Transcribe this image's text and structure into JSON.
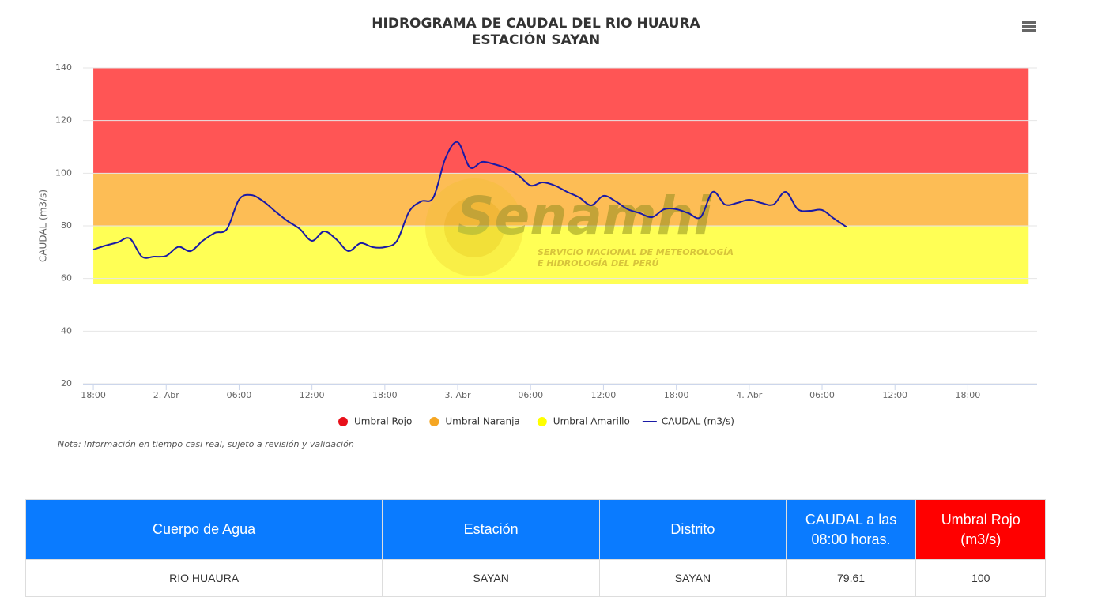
{
  "chart_data": {
    "type": "line",
    "title": "HIDROGRAMA DE CAUDAL DEL RIO HUAURA",
    "subtitle": "ESTACIÓN SAYAN",
    "y_label": "CAUDAL (m3/s)",
    "xlim": [
      -0.85,
      77.7
    ],
    "xticks": [
      {
        "value": 0,
        "label": "18:00"
      },
      {
        "value": 6,
        "label": "2. Abr"
      },
      {
        "value": 12,
        "label": "06:00"
      },
      {
        "value": 18,
        "label": "12:00"
      },
      {
        "value": 24,
        "label": "18:00"
      },
      {
        "value": 30,
        "label": "3. Abr"
      },
      {
        "value": 36,
        "label": "06:00"
      },
      {
        "value": 42,
        "label": "12:00"
      },
      {
        "value": 48,
        "label": "18:00"
      },
      {
        "value": 54,
        "label": "4. Abr"
      },
      {
        "value": 60,
        "label": "06:00"
      },
      {
        "value": 66,
        "label": "12:00"
      },
      {
        "value": 72,
        "label": "18:00"
      }
    ],
    "ylim": [
      20,
      140
    ],
    "yticks": [
      20,
      40,
      60,
      80,
      100,
      120,
      140
    ],
    "grid": true,
    "x": [
      0,
      1,
      2,
      3,
      4,
      5,
      6,
      7,
      8,
      9,
      10,
      11,
      12,
      13,
      14,
      15,
      16,
      17,
      18,
      19,
      20,
      21,
      22,
      23,
      24,
      25,
      26,
      27,
      28,
      29,
      30,
      31,
      32,
      33,
      34,
      35,
      36,
      37,
      38,
      39,
      40,
      41,
      42,
      43,
      44,
      45,
      46,
      47,
      48,
      49,
      50,
      51,
      52,
      53,
      54,
      55,
      56,
      57,
      58,
      59,
      60,
      61,
      62
    ],
    "series": [
      {
        "name": "CAUDAL (m3/s)",
        "color": "#1a1aa6",
        "values": [
          71,
          72.5,
          73.7,
          75.2,
          68.3,
          68.3,
          68.6,
          72,
          70.4,
          74.3,
          77.3,
          78.8,
          90,
          91.7,
          89.3,
          85.4,
          81.8,
          78.8,
          74.3,
          77.9,
          74.9,
          70.4,
          73.4,
          71.9,
          71.9,
          74.3,
          85.4,
          89.3,
          90.8,
          105.8,
          111.8,
          102.2,
          104.3,
          103.4,
          101.9,
          99.2,
          95.3,
          96.5,
          95.3,
          92.9,
          90.8,
          87.8,
          91.4,
          89.3,
          86.3,
          84.8,
          83.3,
          86.3,
          86.3,
          84.8,
          83.3,
          92.9,
          88.1,
          88.7,
          89.9,
          88.7,
          88.1,
          92.9,
          86.3,
          85.7,
          86,
          82.7,
          79.61
        ]
      }
    ],
    "bands": [
      {
        "name": "Umbral Rojo",
        "color": "#e8101a",
        "fill": "#ff5555",
        "xlim": [
          0,
          77
        ],
        "ylim": [
          100,
          140
        ]
      },
      {
        "name": "Umbral Naranja",
        "color": "#f5a623",
        "fill": "#fdbd55",
        "xlim": [
          0,
          77
        ],
        "ylim": [
          80,
          100
        ]
      },
      {
        "name": "Umbral Amarillo",
        "color": "#ffff00",
        "fill": "#ffff55",
        "xlim": [
          0,
          77
        ],
        "ylim": [
          57.8,
          80
        ]
      }
    ],
    "note": "Nota: Información en tiempo casi real, sujeto a revisión y validación",
    "watermark": {
      "name": "Senamhi",
      "lines": [
        "SERVICIO NACIONAL DE METEOROLOGÍA",
        "E HIDROLOGÍA DEL PERÚ"
      ]
    }
  },
  "table": {
    "headers": [
      "Cuerpo de Agua",
      "Estación",
      "Distrito",
      "CAUDAL a las 08:00 horas.",
      "Umbral Rojo (m3/s)"
    ],
    "rows": [
      [
        "RIO HUAURA",
        "SAYAN",
        "SAYAN",
        79.61,
        100
      ]
    ]
  }
}
